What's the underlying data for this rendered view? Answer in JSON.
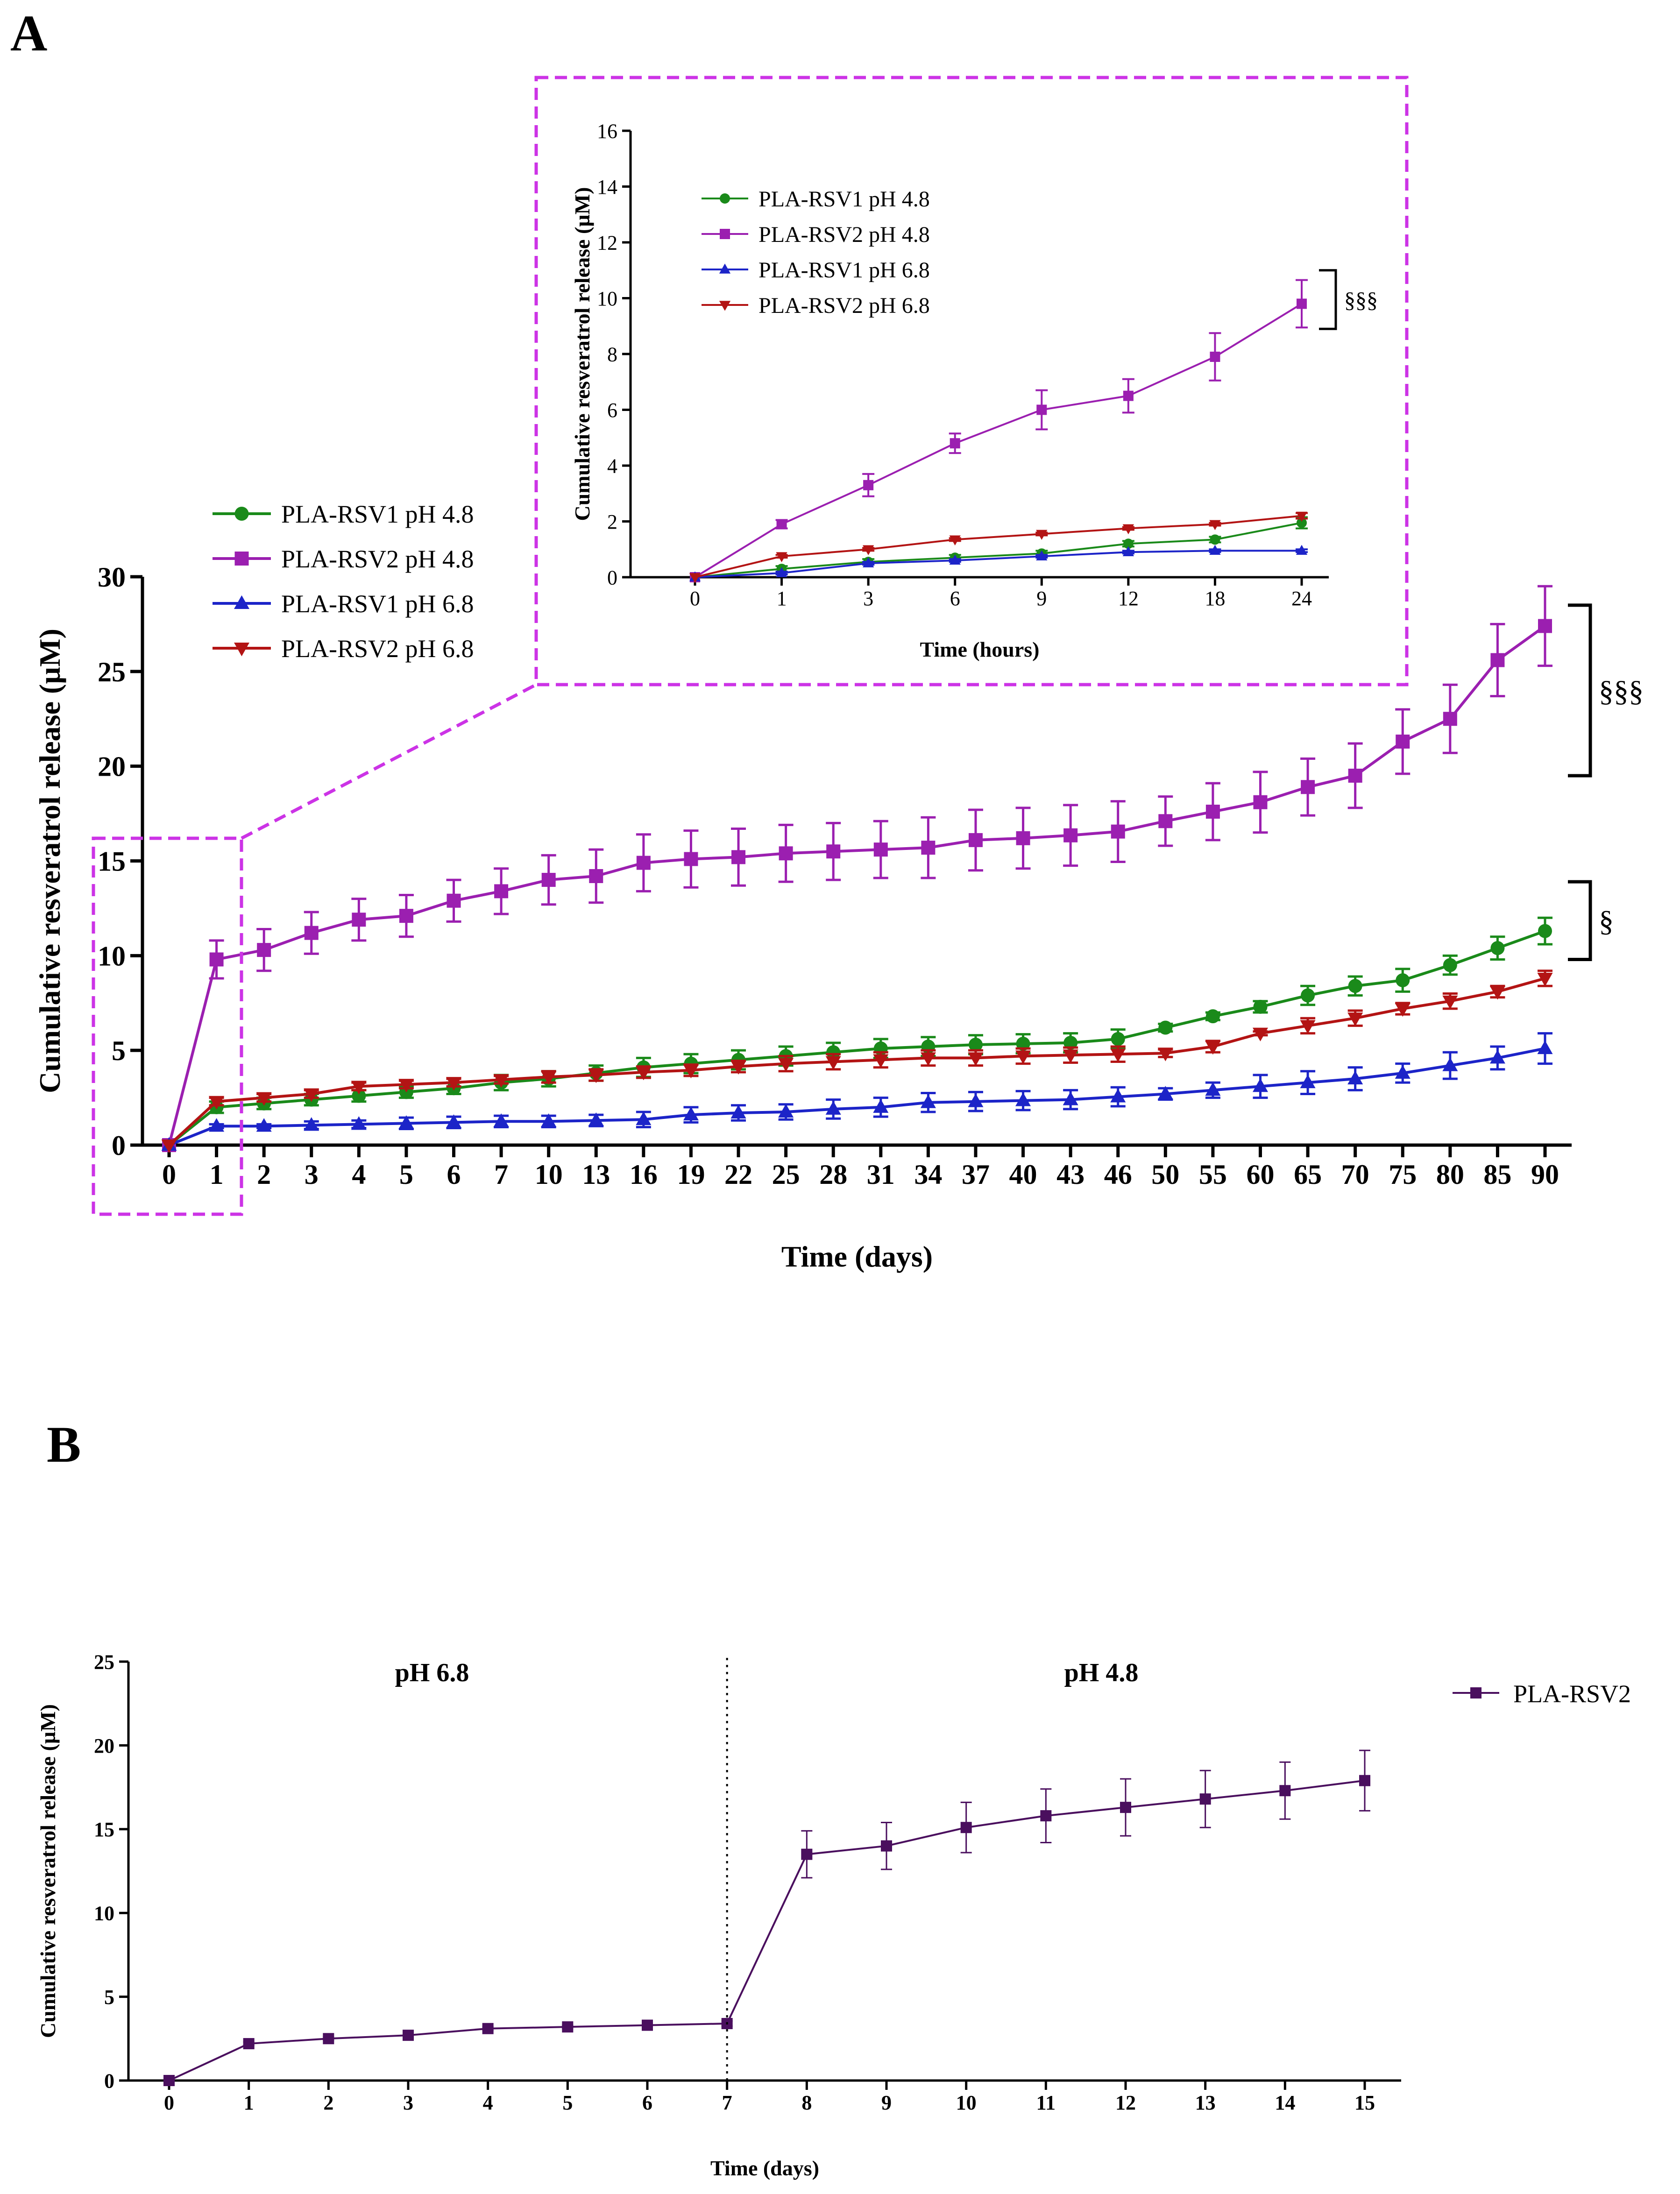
{
  "chart_data": [
    {
      "panel": "A",
      "type": "line",
      "title": "",
      "xlabel": "Time (days)",
      "ylabel": "Cumulative resveratrol release (µM)",
      "categories": [
        "0",
        "1",
        "2",
        "3",
        "4",
        "5",
        "6",
        "7",
        "10",
        "13",
        "16",
        "19",
        "22",
        "25",
        "28",
        "31",
        "34",
        "37",
        "40",
        "43",
        "46",
        "50",
        "55",
        "60",
        "65",
        "70",
        "75",
        "80",
        "85",
        "90"
      ],
      "yticks": [
        "0",
        "5",
        "10",
        "15",
        "20",
        "25",
        "30"
      ],
      "ylim": [
        0,
        30
      ],
      "legend_position": "upper-left",
      "series": [
        {
          "name": "PLA-RSV1 pH 4.8",
          "color": "#1a8a1a",
          "marker": "circle",
          "values": [
            0,
            2.0,
            2.2,
            2.4,
            2.6,
            2.8,
            3.0,
            3.3,
            3.5,
            3.8,
            4.1,
            4.3,
            4.5,
            4.7,
            4.9,
            5.1,
            5.2,
            5.3,
            5.35,
            5.4,
            5.6,
            6.2,
            6.8,
            7.3,
            7.9,
            8.4,
            8.7,
            9.5,
            10.4,
            11.3
          ],
          "errors": [
            0,
            0.3,
            0.3,
            0.3,
            0.3,
            0.3,
            0.3,
            0.4,
            0.4,
            0.4,
            0.5,
            0.5,
            0.5,
            0.5,
            0.5,
            0.5,
            0.5,
            0.5,
            0.5,
            0.5,
            0.5,
            0.2,
            0.2,
            0.3,
            0.5,
            0.5,
            0.6,
            0.5,
            0.6,
            0.7
          ]
        },
        {
          "name": "PLA-RSV2 pH 4.8",
          "color": "#9b1fb0",
          "marker": "square",
          "values": [
            0,
            9.8,
            10.3,
            11.2,
            11.9,
            12.1,
            12.9,
            13.4,
            14.0,
            14.2,
            14.9,
            15.1,
            15.2,
            15.4,
            15.5,
            15.6,
            15.7,
            16.1,
            16.2,
            16.35,
            16.55,
            17.1,
            17.6,
            18.1,
            18.9,
            19.5,
            21.3,
            22.5,
            25.6,
            27.4
          ],
          "errors": [
            0,
            1.0,
            1.1,
            1.1,
            1.1,
            1.1,
            1.1,
            1.2,
            1.3,
            1.4,
            1.5,
            1.5,
            1.5,
            1.5,
            1.5,
            1.5,
            1.6,
            1.6,
            1.6,
            1.6,
            1.6,
            1.3,
            1.5,
            1.6,
            1.5,
            1.7,
            1.7,
            1.8,
            1.9,
            2.1
          ]
        },
        {
          "name": "PLA-RSV1 pH 6.8",
          "color": "#1c24c8",
          "marker": "triangle-up",
          "values": [
            0,
            1.0,
            1.0,
            1.05,
            1.1,
            1.15,
            1.2,
            1.25,
            1.25,
            1.3,
            1.35,
            1.6,
            1.7,
            1.75,
            1.9,
            2.0,
            2.25,
            2.3,
            2.35,
            2.4,
            2.55,
            2.7,
            2.9,
            3.1,
            3.3,
            3.5,
            3.8,
            4.2,
            4.6,
            5.1
          ],
          "errors": [
            0,
            0.1,
            0.1,
            0.2,
            0.2,
            0.3,
            0.3,
            0.3,
            0.3,
            0.3,
            0.4,
            0.4,
            0.4,
            0.4,
            0.5,
            0.5,
            0.5,
            0.5,
            0.5,
            0.5,
            0.5,
            0.3,
            0.4,
            0.6,
            0.6,
            0.6,
            0.5,
            0.7,
            0.6,
            0.8
          ]
        },
        {
          "name": "PLA-RSV2 pH 6.8",
          "color": "#b31414",
          "marker": "triangle-down",
          "values": [
            0,
            2.3,
            2.5,
            2.7,
            3.1,
            3.2,
            3.3,
            3.45,
            3.6,
            3.7,
            3.85,
            3.95,
            4.15,
            4.3,
            4.4,
            4.5,
            4.6,
            4.6,
            4.7,
            4.75,
            4.8,
            4.85,
            5.2,
            5.9,
            6.3,
            6.7,
            7.2,
            7.6,
            8.1,
            8.8
          ],
          "errors": [
            0,
            0.2,
            0.2,
            0.2,
            0.2,
            0.2,
            0.2,
            0.2,
            0.3,
            0.3,
            0.3,
            0.3,
            0.3,
            0.4,
            0.4,
            0.4,
            0.4,
            0.4,
            0.4,
            0.4,
            0.4,
            0.2,
            0.3,
            0.1,
            0.4,
            0.4,
            0.3,
            0.4,
            0.3,
            0.4
          ]
        }
      ],
      "annotations": [
        {
          "text": "§§§",
          "range": [
            19.5,
            28.5
          ]
        },
        {
          "text": "§",
          "range": [
            9.8,
            13.9
          ]
        }
      ]
    },
    {
      "panel": "A inset",
      "type": "line",
      "title": "",
      "xlabel": "Time (hours)",
      "ylabel": "Cumulative resveratrol release (µM)",
      "categories": [
        "0",
        "1",
        "3",
        "6",
        "9",
        "12",
        "18",
        "24"
      ],
      "yticks": [
        "0",
        "2",
        "4",
        "6",
        "8",
        "10",
        "12",
        "14",
        "16"
      ],
      "ylim": [
        0,
        16
      ],
      "legend_position": "upper-left",
      "series": [
        {
          "name": "PLA-RSV1 pH 4.8",
          "color": "#1a8a1a",
          "marker": "circle",
          "values": [
            0,
            0.3,
            0.55,
            0.7,
            0.85,
            1.2,
            1.35,
            1.95
          ],
          "errors": [
            0,
            0.1,
            0.1,
            0.1,
            0.1,
            0.1,
            0.1,
            0.2
          ]
        },
        {
          "name": "PLA-RSV2 pH 4.8",
          "color": "#9b1fb0",
          "marker": "square",
          "values": [
            0,
            1.9,
            3.3,
            4.8,
            6.0,
            6.5,
            7.9,
            9.8
          ],
          "errors": [
            0,
            0.15,
            0.4,
            0.35,
            0.7,
            0.6,
            0.85,
            0.85
          ]
        },
        {
          "name": "PLA-RSV1 pH 6.8",
          "color": "#1c24c8",
          "marker": "triangle-up",
          "values": [
            0,
            0.15,
            0.5,
            0.6,
            0.75,
            0.9,
            0.95,
            0.95
          ],
          "errors": [
            0,
            0.05,
            0.05,
            0.05,
            0.05,
            0.05,
            0.05,
            0.05
          ]
        },
        {
          "name": "PLA-RSV2 pH 6.8",
          "color": "#b31414",
          "marker": "triangle-down",
          "values": [
            0,
            0.75,
            1.0,
            1.35,
            1.55,
            1.75,
            1.9,
            2.2
          ],
          "errors": [
            0,
            0.05,
            0.05,
            0.05,
            0.05,
            0.05,
            0.05,
            0.1
          ]
        }
      ],
      "annotations": [
        {
          "text": "§§§",
          "range": [
            8.9,
            11.0
          ]
        }
      ]
    },
    {
      "panel": "B",
      "type": "line",
      "title": "",
      "xlabel": "Time (days)",
      "ylabel": "Cumulative resveratrol release (µM)",
      "categories": [
        "0",
        "1",
        "2",
        "3",
        "4",
        "5",
        "6",
        "7",
        "8",
        "9",
        "10",
        "11",
        "12",
        "13",
        "14",
        "15"
      ],
      "yticks": [
        "0",
        "5",
        "10",
        "15",
        "20",
        "25"
      ],
      "ylim": [
        0,
        25
      ],
      "legend_position": "right",
      "series": [
        {
          "name": "PLA-RSV2",
          "color": "#4a0f5e",
          "marker": "square",
          "values": [
            0,
            2.2,
            2.5,
            2.7,
            3.1,
            3.2,
            3.3,
            3.4,
            13.5,
            14.0,
            15.1,
            15.8,
            16.3,
            16.8,
            17.3,
            17.9
          ],
          "errors": [
            0,
            0.1,
            0.1,
            0.1,
            0.1,
            0.1,
            0.1,
            0.15,
            1.4,
            1.4,
            1.5,
            1.6,
            1.7,
            1.7,
            1.7,
            1.8
          ]
        }
      ],
      "region_labels": [
        "pH 6.8",
        "pH 4.8"
      ],
      "divider_after_index": 7
    }
  ],
  "panel_labels": {
    "a": "A",
    "b": "B"
  }
}
